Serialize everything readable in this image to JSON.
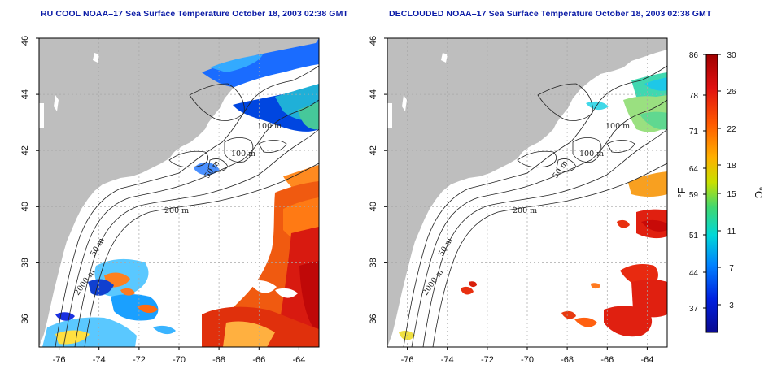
{
  "titles": {
    "left": "RU COOL NOAA–17 Sea Surface Temperature October 18, 2003 02:38 GMT",
    "right": "DECLOUDED NOAA–17 Sea Surface Temperature October 18, 2003 02:38 GMT"
  },
  "axes": {
    "lon_ticks": [
      "-76",
      "-74",
      "-72",
      "-70",
      "-68",
      "-66",
      "-64"
    ],
    "lat_ticks": [
      "36",
      "38",
      "40",
      "42",
      "44",
      "46"
    ],
    "lon_range": [
      -77,
      -63
    ],
    "lat_range": [
      35,
      46
    ]
  },
  "contour_labels": {
    "m100_a": "100 m",
    "m100_b": "100 m",
    "m50_a": "50 m",
    "m200": "200 m",
    "m50_b": "50 m",
    "m2000": "2000 m"
  },
  "colorbar": {
    "fahrenheit_unit": "°F",
    "celsius_unit": "°C",
    "fahrenheit_ticks": [
      "86",
      "78",
      "71",
      "64",
      "59",
      "51",
      "44",
      "37"
    ],
    "celsius_ticks": [
      "30",
      "26",
      "22",
      "18",
      "15",
      "11",
      "7",
      "3"
    ],
    "colors": [
      "#b40000",
      "#e01010",
      "#ff5a00",
      "#ffb000",
      "#c8e000",
      "#40d870",
      "#00d8d8",
      "#0080ff",
      "#0020e0",
      "#0a0a90"
    ]
  },
  "colors": {
    "land": "#bebebe",
    "water": "#ffffff",
    "title": "#0a1aa6",
    "grid": "#a8a8a8"
  }
}
